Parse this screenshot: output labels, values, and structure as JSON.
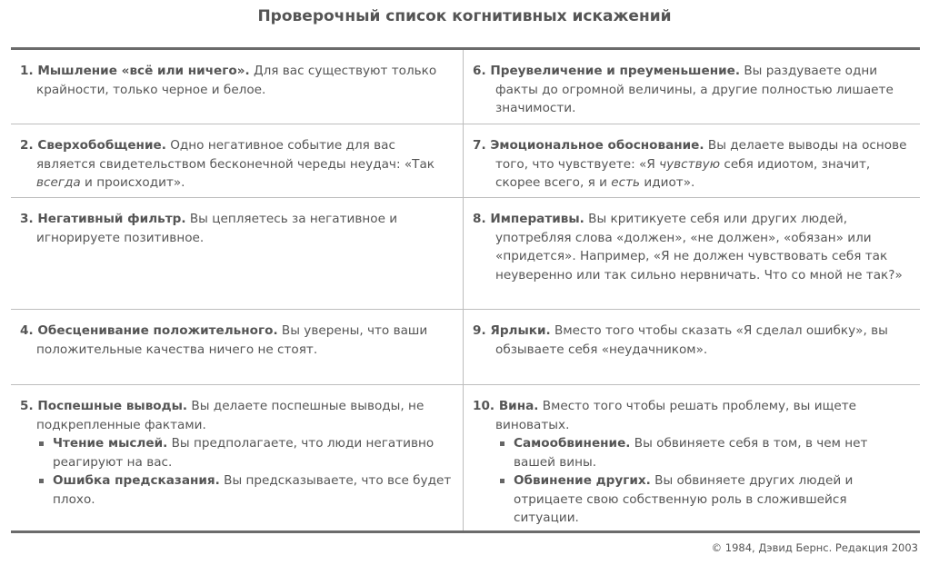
{
  "title": "Проверочный список когнитивных искажений",
  "rows": [
    {
      "left": {
        "head": "1. Мышление «всё или ничего».",
        "parts": [
          {
            "t": " Для вас существуют только крайности, только черное и белое."
          }
        ]
      },
      "right": {
        "head": "6. Преувеличение и преуменьшение.",
        "parts": [
          {
            "t": " Вы раздуваете одни факты до огромной величины, а другие полностью лишаете значимости."
          }
        ]
      }
    },
    {
      "left": {
        "head": "2. Сверхобобщение.",
        "parts": [
          {
            "t": " Одно негативное событие для вас является свидетельством бесконечной череды неудач: «Так "
          },
          {
            "t": "всегда",
            "i": true
          },
          {
            "t": " и происходит»."
          }
        ]
      },
      "right": {
        "head": "7. Эмоциональное обоснование.",
        "parts": [
          {
            "t": " Вы делаете выводы на основе того, что чувствуете: «Я "
          },
          {
            "t": "чувствую",
            "i": true
          },
          {
            "t": " себя идиотом, значит, скорее всего, я и "
          },
          {
            "t": "есть",
            "i": true
          },
          {
            "t": " идиот»."
          }
        ]
      }
    },
    {
      "left": {
        "head": "3. Негативный фильтр.",
        "parts": [
          {
            "t": " Вы цепляетесь за негативное и игнорируете позитивное."
          }
        ]
      },
      "right": {
        "head": "8. Императивы.",
        "parts": [
          {
            "t": " Вы критикуете себя или других людей, употребляя слова «должен», «не должен», «обязан» или «придется». Например, «Я не должен чувствовать себя так неуверенно или так сильно нервничать. Что со мной не так?»"
          }
        ]
      }
    },
    {
      "left": {
        "head": "4. Обесценивание положительного.",
        "parts": [
          {
            "t": " Вы уверены, что ваши положительные качества ничего не стоят."
          }
        ]
      },
      "right": {
        "head": "9. Ярлыки.",
        "parts": [
          {
            "t": " Вместо того чтобы сказать «Я сделал ошибку», вы обзываете себя «неудачником»."
          }
        ]
      }
    },
    {
      "left": {
        "head": "5. Поспешные выводы.",
        "parts": [
          {
            "t": " Вы делаете поспешные выводы, не подкрепленные фактами."
          }
        ],
        "subs": [
          {
            "head": "Чтение мыслей.",
            "text": " Вы предполагаете, что люди негативно реагируют на вас."
          },
          {
            "head": "Ошибка предсказания.",
            "text": " Вы предсказываете, что все будет плохо."
          }
        ]
      },
      "right": {
        "head": "10. Вина.",
        "parts": [
          {
            "t": " Вместо того чтобы решать проблему, вы ищете виноватых."
          }
        ],
        "subs": [
          {
            "head": "Самообвинение.",
            "text": " Вы обвиняете себя в том, в чем нет вашей вины."
          },
          {
            "head": "Обвинение других.",
            "text": " Вы обвиняете других людей и отрицаете свою собственную роль в сложившейся ситуации."
          }
        ]
      }
    }
  ],
  "footer": "© 1984, Дэвид Бернс. Редакция 2003"
}
